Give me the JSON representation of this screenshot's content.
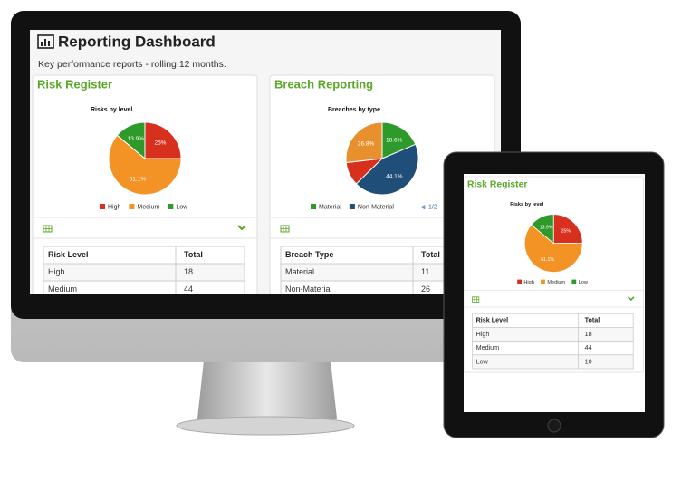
{
  "header": {
    "title": "Reporting Dashboard",
    "subtitle": "Key performance reports - rolling 12 months."
  },
  "panels": [
    {
      "title": "Risk Register",
      "chart_data": {
        "type": "pie",
        "title": "Risks by level",
        "categories": [
          "High",
          "Medium",
          "Low"
        ],
        "values": [
          25,
          61.1,
          13.9
        ],
        "value_labels": [
          "25%",
          "61.1%",
          "13.9%"
        ],
        "colors": [
          "#d7301f",
          "#f39325",
          "#2e9a2b"
        ]
      },
      "table": {
        "columns": [
          "Risk Level",
          "Total"
        ],
        "rows": [
          [
            "High",
            "18"
          ],
          [
            "Medium",
            "44"
          ],
          [
            "Low",
            "10"
          ]
        ]
      }
    },
    {
      "title": "Breach Reporting",
      "chart_data": {
        "type": "pie",
        "title": "Breaches by type",
        "categories": [
          "Material",
          "Non-Material",
          null,
          null
        ],
        "values": [
          18.6,
          44.1,
          10.5,
          26.8
        ],
        "value_labels": [
          "18.6%",
          "44.1%",
          null,
          "26.8%"
        ],
        "colors": [
          "#2e9a2b",
          "#1f4e79",
          "#d7301f",
          "#e8902e"
        ],
        "legend_page": "1/2"
      },
      "table": {
        "columns": [
          "Breach Type",
          "Total"
        ],
        "rows": [
          [
            "Material",
            "11"
          ],
          [
            "Non-Material",
            "26"
          ]
        ]
      }
    }
  ]
}
